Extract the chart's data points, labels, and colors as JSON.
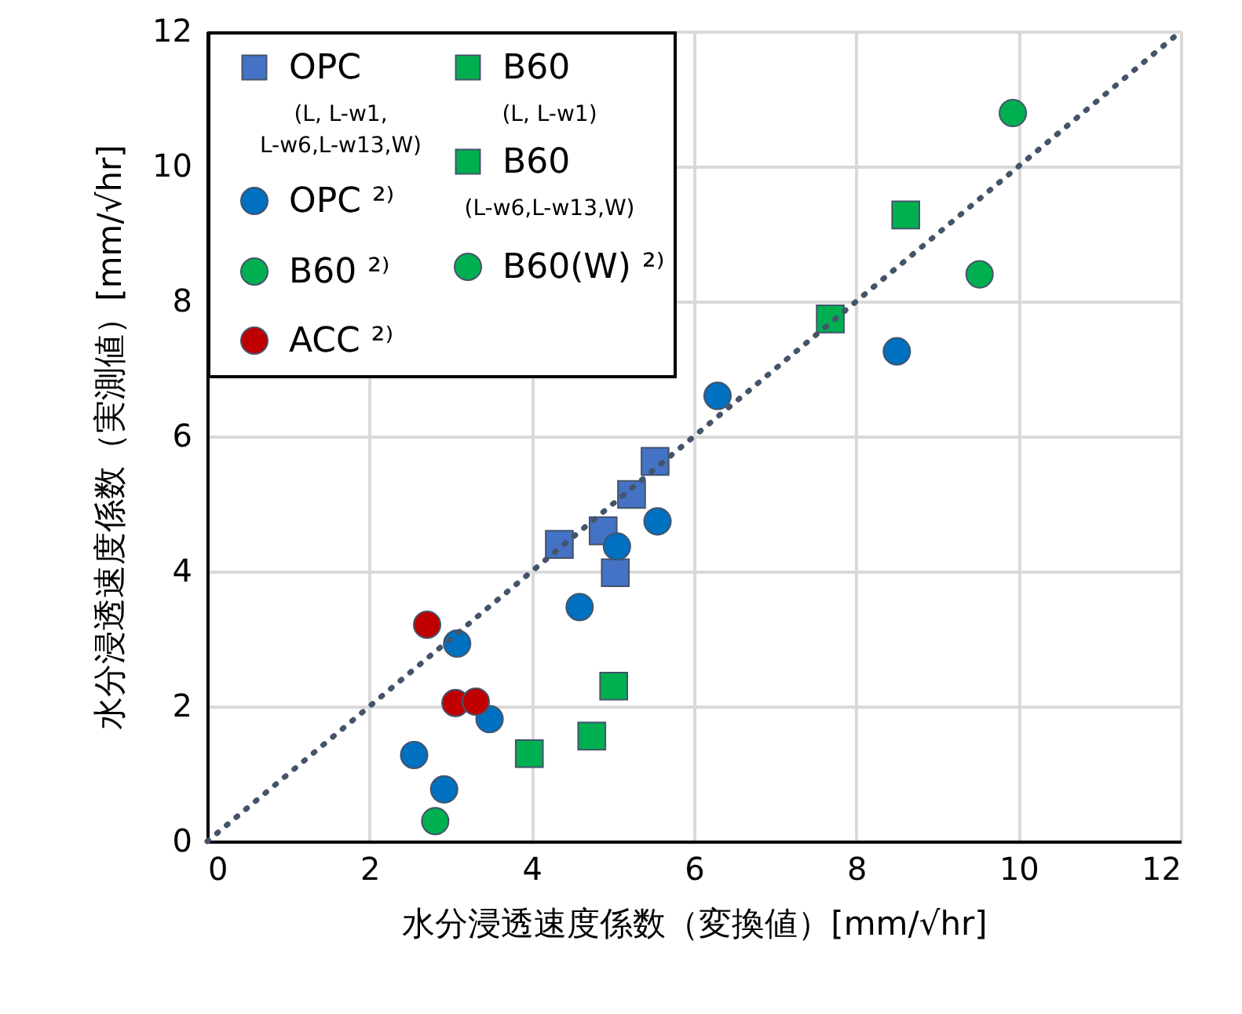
{
  "chart_data": {
    "type": "scatter",
    "xlabel": "水分浸透速度係数（変換値）[mm/√hr]",
    "ylabel": "水分浸透速度係数（実測値）[mm/√hr]",
    "xlim": [
      0,
      12
    ],
    "ylim": [
      0,
      12
    ],
    "xticks": [
      0,
      2,
      4,
      6,
      8,
      10,
      12
    ],
    "yticks": [
      0,
      2,
      4,
      6,
      8,
      10,
      12
    ],
    "grid": true,
    "legend": "top left",
    "series": [
      {
        "name": "OPC\n(L, L-w1,\nL-w6,L-w13,W)",
        "color": "#4472c4",
        "marker": "square",
        "x": [
          4.34,
          4.88,
          5.23,
          5.52,
          5.03
        ],
        "values": [
          4.4,
          4.6,
          5.14,
          5.63,
          3.98
        ]
      },
      {
        "name": "OPC ²⁾",
        "color": "#0070c0",
        "marker": "circle",
        "x": [
          6.29,
          8.5,
          5.55,
          5.05,
          4.59,
          3.08,
          3.48,
          2.55,
          2.92
        ],
        "values": [
          6.6,
          7.26,
          4.74,
          4.37,
          3.47,
          2.93,
          1.81,
          1.28,
          0.77
        ]
      },
      {
        "name": "B60 ²⁾",
        "color": "#00b050",
        "marker": "circle",
        "x": [
          9.93,
          9.52
        ],
        "values": [
          10.79,
          8.4
        ]
      },
      {
        "name": "ACC ²⁾",
        "color": "#c00000",
        "marker": "circle",
        "x": [
          2.71,
          3.06,
          3.31
        ],
        "values": [
          3.21,
          2.05,
          2.07
        ]
      },
      {
        "name": "B60\n(L, L-w1)",
        "color": "#00b050",
        "marker": "square",
        "x": [
          7.68,
          8.61
        ],
        "values": [
          7.74,
          9.28
        ]
      },
      {
        "name": "B60\n(L-w6,L-w13,W)",
        "color": "#00b050",
        "marker": "square",
        "x": [
          3.97,
          4.74,
          5.01
        ],
        "values": [
          1.3,
          1.56,
          2.3
        ]
      },
      {
        "name": "B60(W) ²⁾",
        "color": "#00b050",
        "marker": "circle",
        "x": [
          2.81
        ],
        "values": [
          0.3
        ]
      },
      {
        "type": "line",
        "color": "#44546a",
        "line_style": "dotted",
        "x": [
          0,
          12
        ],
        "values": [
          0,
          12
        ]
      }
    ]
  }
}
